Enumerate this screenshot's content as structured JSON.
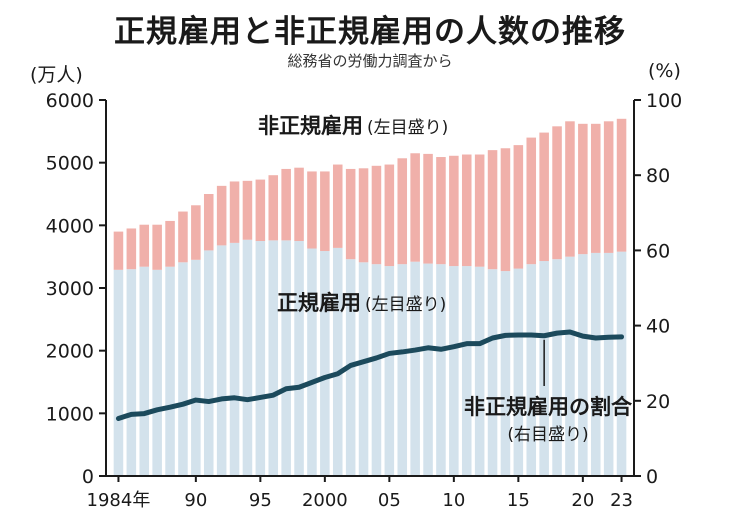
{
  "title": "正規雇用と非正規雇用の人数の推移",
  "subtitle": "総務省の労働力調査から",
  "chart_data": {
    "type": "bar",
    "stacked": true,
    "categories": [
      1984,
      1985,
      1986,
      1987,
      1988,
      1989,
      1990,
      1991,
      1992,
      1993,
      1994,
      1995,
      1996,
      1997,
      1998,
      1999,
      2000,
      2001,
      2002,
      2003,
      2004,
      2005,
      2006,
      2007,
      2008,
      2009,
      2010,
      2011,
      2012,
      2013,
      2014,
      2015,
      2016,
      2017,
      2018,
      2019,
      2020,
      2021,
      2022,
      2023
    ],
    "x_tick_labels": [
      {
        "year": 1984,
        "label": "1984年"
      },
      {
        "year": 1990,
        "label": "90"
      },
      {
        "year": 1995,
        "label": "95"
      },
      {
        "year": 2000,
        "label": "2000"
      },
      {
        "year": 2005,
        "label": "05"
      },
      {
        "year": 2010,
        "label": "10"
      },
      {
        "year": 2015,
        "label": "15"
      },
      {
        "year": 2020,
        "label": "20"
      },
      {
        "year": 2023,
        "label": "23"
      }
    ],
    "series": [
      {
        "name": "正規雇用",
        "axis": "left",
        "color": "#d3e2ec",
        "values": [
          3290,
          3300,
          3340,
          3290,
          3340,
          3410,
          3450,
          3600,
          3680,
          3720,
          3770,
          3750,
          3760,
          3760,
          3750,
          3630,
          3590,
          3640,
          3460,
          3410,
          3380,
          3350,
          3380,
          3420,
          3390,
          3380,
          3350,
          3350,
          3340,
          3300,
          3270,
          3310,
          3380,
          3430,
          3460,
          3500,
          3540,
          3560,
          3560,
          3580
        ]
      },
      {
        "name": "非正規雇用",
        "axis": "left",
        "color": "#f0b0aa",
        "values": [
          610,
          650,
          670,
          720,
          730,
          810,
          870,
          900,
          950,
          980,
          940,
          980,
          1040,
          1140,
          1170,
          1230,
          1270,
          1330,
          1440,
          1500,
          1570,
          1620,
          1690,
          1730,
          1750,
          1710,
          1760,
          1780,
          1790,
          1900,
          1960,
          1970,
          2020,
          2050,
          2120,
          2160,
          2080,
          2060,
          2100,
          2120
        ]
      },
      {
        "name": "非正規雇用の割合",
        "axis": "right",
        "type": "line",
        "color": "#1c4a5c",
        "values": [
          15.3,
          16.4,
          16.6,
          17.6,
          18.3,
          19.1,
          20.2,
          19.8,
          20.5,
          20.8,
          20.3,
          20.9,
          21.5,
          23.2,
          23.6,
          24.9,
          26.2,
          27.2,
          29.4,
          30.4,
          31.4,
          32.6,
          33.0,
          33.5,
          34.1,
          33.7,
          34.4,
          35.2,
          35.2,
          36.7,
          37.4,
          37.5,
          37.5,
          37.3,
          38.0,
          38.3,
          37.2,
          36.7,
          36.9,
          37.0
        ]
      }
    ],
    "y_left": {
      "label": "(万人)",
      "min": 0,
      "max": 6000,
      "ticks": [
        "0",
        "1000",
        "2000",
        "3000",
        "4000",
        "5000",
        "6000"
      ]
    },
    "y_right": {
      "label": "(%)",
      "min": 0,
      "max": 100,
      "ticks": [
        "0",
        "20",
        "40",
        "60",
        "80",
        "100"
      ]
    },
    "annotations": {
      "nonregular": {
        "main": "非正規雇用",
        "sub": "(左目盛り)"
      },
      "regular": {
        "main": "正規雇用",
        "sub": "(左目盛り)"
      },
      "ratio": {
        "main": "非正規雇用の割合",
        "sub": "(右目盛り)",
        "points_to_year": 2017
      }
    }
  }
}
